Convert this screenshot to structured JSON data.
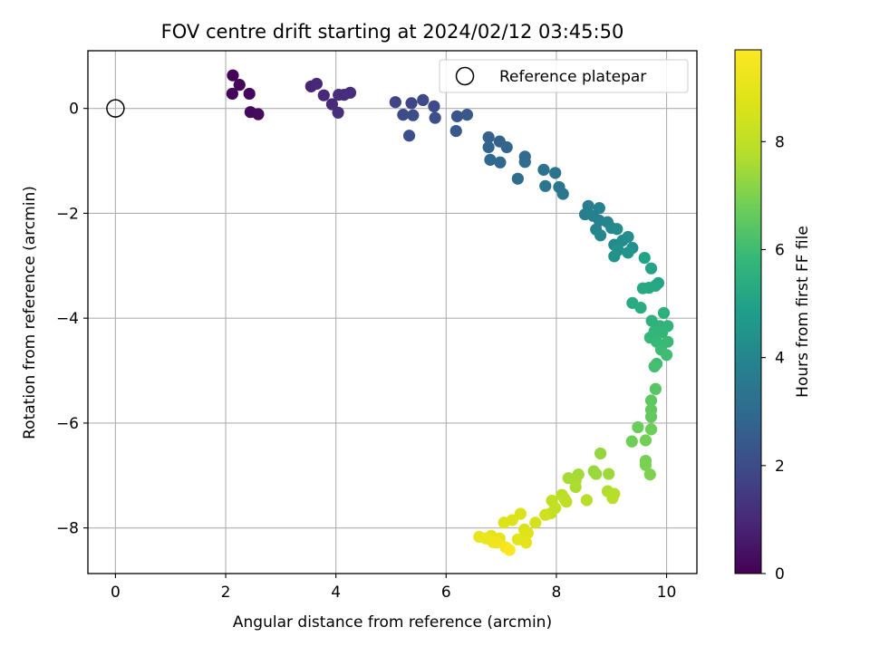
{
  "chart_data": {
    "type": "scatter",
    "title": "FOV centre drift starting at 2024/02/12 03:45:50",
    "xlabel": "Angular distance from reference (arcmin)",
    "ylabel": "Rotation from reference (arcmin)",
    "xlim": [
      -0.5,
      10.55
    ],
    "ylim": [
      -8.87,
      1.1
    ],
    "xticks": [
      0,
      2,
      4,
      6,
      8,
      10
    ],
    "yticks": [
      0,
      -2,
      -4,
      -6,
      -8
    ],
    "grid": true,
    "legend": {
      "position": "top-right",
      "entries": [
        {
          "label": "Reference platepar",
          "marker": "open-circle"
        }
      ]
    },
    "reference_point": {
      "x": 0,
      "y": 0
    },
    "colorbar": {
      "label": "Hours from first FF file",
      "colormap": "viridis",
      "range": [
        0,
        9.7
      ],
      "ticks": [
        0,
        2,
        4,
        6,
        8
      ]
    },
    "points": [
      {
        "x": 2.13,
        "y": 0.63,
        "h": 0.05
      },
      {
        "x": 2.25,
        "y": 0.45,
        "h": 0.1
      },
      {
        "x": 2.12,
        "y": 0.28,
        "h": 0.12
      },
      {
        "x": 2.43,
        "y": 0.28,
        "h": 0.15
      },
      {
        "x": 2.45,
        "y": -0.07,
        "h": 0.2
      },
      {
        "x": 2.59,
        "y": -0.11,
        "h": 0.25
      },
      {
        "x": 3.55,
        "y": 0.42,
        "h": 0.9
      },
      {
        "x": 3.65,
        "y": 0.47,
        "h": 0.95
      },
      {
        "x": 3.78,
        "y": 0.25,
        "h": 1.0
      },
      {
        "x": 3.93,
        "y": 0.08,
        "h": 1.05
      },
      {
        "x": 4.05,
        "y": 0.26,
        "h": 1.1
      },
      {
        "x": 4.15,
        "y": 0.26,
        "h": 1.12
      },
      {
        "x": 4.26,
        "y": 0.3,
        "h": 1.15
      },
      {
        "x": 4.04,
        "y": -0.08,
        "h": 1.2
      },
      {
        "x": 5.08,
        "y": 0.12,
        "h": 1.8
      },
      {
        "x": 5.37,
        "y": 0.1,
        "h": 1.85
      },
      {
        "x": 5.58,
        "y": 0.16,
        "h": 1.9
      },
      {
        "x": 5.78,
        "y": 0.04,
        "h": 1.95
      },
      {
        "x": 5.22,
        "y": -0.12,
        "h": 2.0
      },
      {
        "x": 5.4,
        "y": -0.13,
        "h": 2.05
      },
      {
        "x": 5.8,
        "y": -0.18,
        "h": 2.1
      },
      {
        "x": 5.33,
        "y": -0.52,
        "h": 2.1
      },
      {
        "x": 6.2,
        "y": -0.15,
        "h": 2.3
      },
      {
        "x": 6.38,
        "y": -0.12,
        "h": 2.35
      },
      {
        "x": 6.18,
        "y": -0.43,
        "h": 2.4
      },
      {
        "x": 6.77,
        "y": -0.55,
        "h": 2.7
      },
      {
        "x": 6.97,
        "y": -0.63,
        "h": 2.75
      },
      {
        "x": 6.77,
        "y": -0.74,
        "h": 2.8
      },
      {
        "x": 7.1,
        "y": -0.74,
        "h": 2.85
      },
      {
        "x": 6.8,
        "y": -0.98,
        "h": 2.9
      },
      {
        "x": 6.98,
        "y": -1.03,
        "h": 2.95
      },
      {
        "x": 7.43,
        "y": -0.92,
        "h": 3.0
      },
      {
        "x": 7.43,
        "y": -1.02,
        "h": 3.05
      },
      {
        "x": 7.3,
        "y": -1.34,
        "h": 3.1
      },
      {
        "x": 7.77,
        "y": -1.17,
        "h": 3.3
      },
      {
        "x": 7.98,
        "y": -1.23,
        "h": 3.35
      },
      {
        "x": 7.8,
        "y": -1.48,
        "h": 3.4
      },
      {
        "x": 8.05,
        "y": -1.5,
        "h": 3.45
      },
      {
        "x": 8.12,
        "y": -1.63,
        "h": 3.5
      },
      {
        "x": 8.58,
        "y": -1.86,
        "h": 3.7
      },
      {
        "x": 8.52,
        "y": -2.02,
        "h": 3.75
      },
      {
        "x": 8.67,
        "y": -2.05,
        "h": 3.8
      },
      {
        "x": 8.78,
        "y": -1.9,
        "h": 3.85
      },
      {
        "x": 8.78,
        "y": -2.14,
        "h": 3.9
      },
      {
        "x": 8.93,
        "y": -2.17,
        "h": 3.95
      },
      {
        "x": 8.72,
        "y": -2.31,
        "h": 4.0
      },
      {
        "x": 8.8,
        "y": -2.42,
        "h": 4.05
      },
      {
        "x": 9.0,
        "y": -2.28,
        "h": 4.1
      },
      {
        "x": 9.1,
        "y": -2.3,
        "h": 4.15
      },
      {
        "x": 9.05,
        "y": -2.6,
        "h": 4.2
      },
      {
        "x": 9.2,
        "y": -2.52,
        "h": 4.25
      },
      {
        "x": 9.3,
        "y": -2.45,
        "h": 4.3
      },
      {
        "x": 9.38,
        "y": -2.66,
        "h": 4.35
      },
      {
        "x": 9.12,
        "y": -2.7,
        "h": 4.4
      },
      {
        "x": 9.05,
        "y": -2.82,
        "h": 4.45
      },
      {
        "x": 9.3,
        "y": -2.75,
        "h": 4.5
      },
      {
        "x": 9.6,
        "y": -2.85,
        "h": 5.0
      },
      {
        "x": 9.72,
        "y": -3.05,
        "h": 5.05
      },
      {
        "x": 9.85,
        "y": -3.33,
        "h": 5.1
      },
      {
        "x": 9.8,
        "y": -3.38,
        "h": 5.15
      },
      {
        "x": 9.57,
        "y": -3.43,
        "h": 5.2
      },
      {
        "x": 9.68,
        "y": -3.42,
        "h": 5.25
      },
      {
        "x": 9.38,
        "y": -3.71,
        "h": 5.3
      },
      {
        "x": 9.53,
        "y": -3.8,
        "h": 5.35
      },
      {
        "x": 9.95,
        "y": -3.9,
        "h": 5.5
      },
      {
        "x": 9.73,
        "y": -4.05,
        "h": 5.55
      },
      {
        "x": 9.88,
        "y": -4.15,
        "h": 5.6
      },
      {
        "x": 10.02,
        "y": -4.15,
        "h": 5.65
      },
      {
        "x": 9.78,
        "y": -4.25,
        "h": 5.7
      },
      {
        "x": 9.92,
        "y": -4.27,
        "h": 5.75
      },
      {
        "x": 9.7,
        "y": -4.37,
        "h": 5.8
      },
      {
        "x": 9.82,
        "y": -4.45,
        "h": 5.85
      },
      {
        "x": 10.02,
        "y": -4.45,
        "h": 5.9
      },
      {
        "x": 9.9,
        "y": -4.6,
        "h": 5.95
      },
      {
        "x": 10.0,
        "y": -4.7,
        "h": 6.0
      },
      {
        "x": 9.82,
        "y": -4.87,
        "h": 6.05
      },
      {
        "x": 9.78,
        "y": -4.92,
        "h": 6.1
      },
      {
        "x": 9.8,
        "y": -5.35,
        "h": 6.4
      },
      {
        "x": 9.72,
        "y": -5.57,
        "h": 6.5
      },
      {
        "x": 9.72,
        "y": -5.75,
        "h": 6.55
      },
      {
        "x": 9.72,
        "y": -5.88,
        "h": 6.6
      },
      {
        "x": 9.48,
        "y": -6.08,
        "h": 6.7
      },
      {
        "x": 9.72,
        "y": -6.12,
        "h": 6.75
      },
      {
        "x": 9.37,
        "y": -6.35,
        "h": 6.8
      },
      {
        "x": 9.62,
        "y": -6.33,
        "h": 6.85
      },
      {
        "x": 9.62,
        "y": -6.72,
        "h": 6.9
      },
      {
        "x": 9.62,
        "y": -6.8,
        "h": 6.95
      },
      {
        "x": 9.7,
        "y": -6.98,
        "h": 7.0
      },
      {
        "x": 8.8,
        "y": -6.58,
        "h": 7.3
      },
      {
        "x": 8.68,
        "y": -6.92,
        "h": 7.35
      },
      {
        "x": 8.72,
        "y": -6.97,
        "h": 7.4
      },
      {
        "x": 8.95,
        "y": -6.97,
        "h": 7.45
      },
      {
        "x": 8.4,
        "y": -6.98,
        "h": 7.5
      },
      {
        "x": 8.22,
        "y": -7.05,
        "h": 7.55
      },
      {
        "x": 8.35,
        "y": -7.1,
        "h": 7.6
      },
      {
        "x": 8.35,
        "y": -7.22,
        "h": 7.65
      },
      {
        "x": 8.93,
        "y": -7.3,
        "h": 7.7
      },
      {
        "x": 9.05,
        "y": -7.35,
        "h": 7.75
      },
      {
        "x": 9.02,
        "y": -7.43,
        "h": 7.8
      },
      {
        "x": 8.55,
        "y": -7.47,
        "h": 7.85
      },
      {
        "x": 8.1,
        "y": -7.37,
        "h": 7.9
      },
      {
        "x": 8.15,
        "y": -7.45,
        "h": 7.95
      },
      {
        "x": 8.18,
        "y": -7.5,
        "h": 8.0
      },
      {
        "x": 7.92,
        "y": -7.48,
        "h": 8.05
      },
      {
        "x": 7.98,
        "y": -7.62,
        "h": 8.1
      },
      {
        "x": 7.9,
        "y": -7.72,
        "h": 8.15
      },
      {
        "x": 7.8,
        "y": -7.75,
        "h": 8.4
      },
      {
        "x": 7.62,
        "y": -7.9,
        "h": 8.5
      },
      {
        "x": 7.42,
        "y": -8.03,
        "h": 8.6
      },
      {
        "x": 7.35,
        "y": -7.73,
        "h": 8.65
      },
      {
        "x": 7.2,
        "y": -7.85,
        "h": 8.7
      },
      {
        "x": 7.05,
        "y": -7.9,
        "h": 8.75
      },
      {
        "x": 7.48,
        "y": -8.1,
        "h": 8.8
      },
      {
        "x": 7.38,
        "y": -8.2,
        "h": 8.85
      },
      {
        "x": 7.3,
        "y": -8.22,
        "h": 8.9
      },
      {
        "x": 7.45,
        "y": -8.28,
        "h": 8.95
      },
      {
        "x": 6.97,
        "y": -8.2,
        "h": 9.0
      },
      {
        "x": 6.82,
        "y": -8.15,
        "h": 9.05
      },
      {
        "x": 6.6,
        "y": -8.17,
        "h": 9.1
      },
      {
        "x": 6.72,
        "y": -8.2,
        "h": 9.15
      },
      {
        "x": 6.85,
        "y": -8.27,
        "h": 9.2
      },
      {
        "x": 6.92,
        "y": -8.28,
        "h": 9.3
      },
      {
        "x": 7.08,
        "y": -8.37,
        "h": 9.4
      },
      {
        "x": 7.15,
        "y": -8.42,
        "h": 9.6
      }
    ]
  }
}
